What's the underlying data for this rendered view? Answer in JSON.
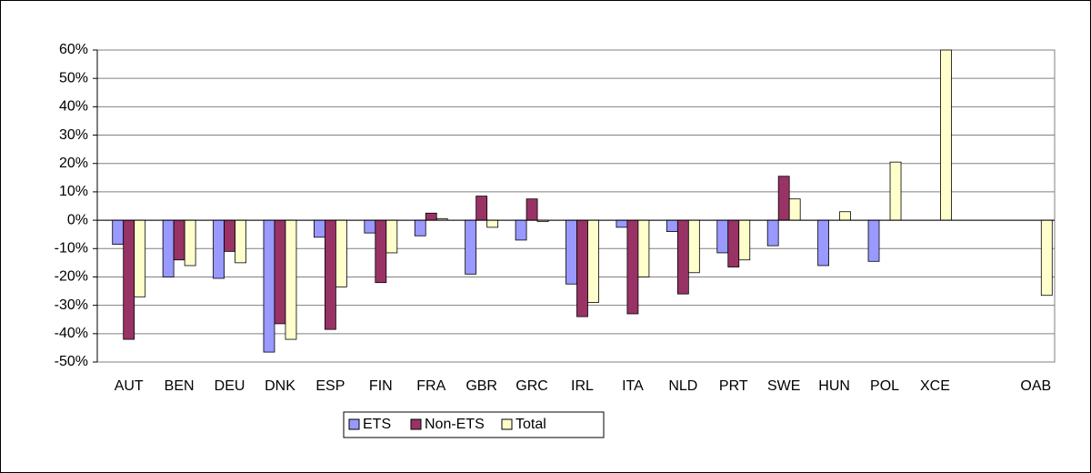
{
  "chart_data": {
    "type": "bar",
    "categories": [
      "AUT",
      "BEN",
      "DEU",
      "DNK",
      "ESP",
      "FIN",
      "FRA",
      "GBR",
      "GRC",
      "IRL",
      "ITA",
      "NLD",
      "PRT",
      "SWE",
      "HUN",
      "POL",
      "XCE",
      null,
      "OAB"
    ],
    "series": [
      {
        "name": "ETS",
        "color": "#9999ff",
        "values": [
          -8.5,
          -20,
          -20.5,
          -46.5,
          -6,
          -4.5,
          -5.5,
          -19,
          -7,
          -22.5,
          -2.5,
          -4,
          -11.5,
          -9,
          -16,
          -14.5,
          null,
          null,
          null
        ]
      },
      {
        "name": "Non-ETS",
        "color": "#993366",
        "values": [
          -42,
          -14,
          -11,
          -36.5,
          -38.5,
          -22,
          2.5,
          8.5,
          7.5,
          -34,
          -33,
          -26,
          -16.5,
          15.5,
          null,
          null,
          null,
          null,
          null
        ]
      },
      {
        "name": "Total",
        "color": "#ffffcc",
        "values": [
          -27,
          -16,
          -15,
          -42,
          -23.5,
          -11.5,
          0.5,
          -2.5,
          -0.5,
          -29,
          -20,
          -18.5,
          -14,
          7.5,
          3,
          20.5,
          60,
          null,
          -26.5
        ]
      }
    ],
    "ylim": [
      -50,
      60
    ],
    "yticks": [
      {
        "value": -50,
        "label": "-50%"
      },
      {
        "value": -40,
        "label": "-40%"
      },
      {
        "value": -30,
        "label": "-30%"
      },
      {
        "value": -20,
        "label": "-20%"
      },
      {
        "value": -10,
        "label": "-10%"
      },
      {
        "value": 0,
        "label": "0%"
      },
      {
        "value": 10,
        "label": "10%"
      },
      {
        "value": 20,
        "label": "20%"
      },
      {
        "value": 30,
        "label": "30%"
      },
      {
        "value": 40,
        "label": "40%"
      },
      {
        "value": 50,
        "label": "50%"
      },
      {
        "value": 60,
        "label": "60%"
      }
    ],
    "grid": true,
    "legend": "bottom"
  }
}
